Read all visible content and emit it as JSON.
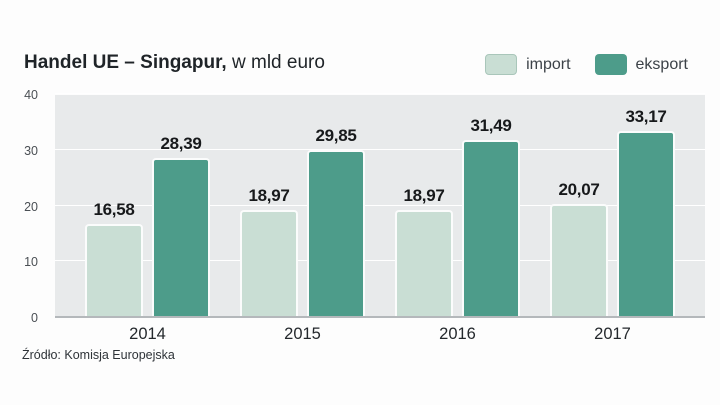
{
  "title": {
    "bold": "Handel UE – Singapur,",
    "regular": " w mld euro"
  },
  "legend": [
    {
      "label": "import",
      "color": "#c9ded4"
    },
    {
      "label": "eksport",
      "color": "#4d9c8a"
    }
  ],
  "source": "Źródło: Komisja Europejska",
  "chart_data": {
    "type": "bar",
    "title": "Handel UE – Singapur, w mld euro",
    "categories": [
      "2014",
      "2015",
      "2016",
      "2017"
    ],
    "series": [
      {
        "name": "import",
        "color": "#c9ded4",
        "values": [
          16.58,
          18.97,
          18.97,
          20.07
        ],
        "labels": [
          "16,58",
          "18,97",
          "18,97",
          "20,07"
        ]
      },
      {
        "name": "eksport",
        "color": "#4d9c8a",
        "values": [
          28.39,
          29.85,
          31.49,
          33.17
        ],
        "labels": [
          "28,39",
          "29,85",
          "31,49",
          "33,17"
        ]
      }
    ],
    "xlabel": "",
    "ylabel": "",
    "ylim": [
      0,
      40
    ],
    "yticks": [
      0,
      10,
      20,
      30,
      40
    ],
    "grid": true,
    "legend_position": "top-right"
  }
}
